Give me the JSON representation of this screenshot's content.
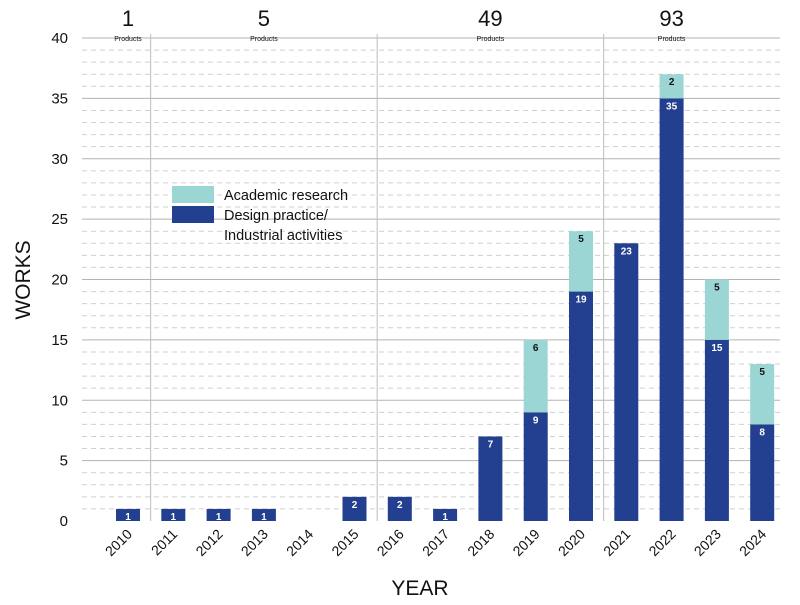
{
  "chart_data": {
    "type": "bar",
    "stacked": true,
    "title": "",
    "xlabel": "YEAR",
    "ylabel": "WORKS",
    "ylim": [
      0,
      40
    ],
    "yticks": [
      0,
      5,
      10,
      15,
      20,
      25,
      30,
      35,
      40
    ],
    "categories": [
      "2010",
      "2011",
      "2012",
      "2013",
      "2014",
      "2015",
      "2016",
      "2017",
      "2018",
      "2019",
      "2020",
      "2021",
      "2022",
      "2023",
      "2024"
    ],
    "series": [
      {
        "name": "Design practice/ Industrial activities",
        "legend_lines": [
          "Design practice/",
          "Industrial activities"
        ],
        "color": "#233f8f",
        "values": [
          1,
          1,
          1,
          1,
          0,
          2,
          2,
          1,
          7,
          9,
          19,
          23,
          35,
          15,
          8
        ]
      },
      {
        "name": "Academic research",
        "legend_lines": [
          "Academic research"
        ],
        "color": "#9bd5d4",
        "values": [
          0,
          0,
          0,
          0,
          0,
          0,
          0,
          0,
          0,
          6,
          5,
          0,
          2,
          5,
          5
        ]
      }
    ],
    "grid": true,
    "legend_position": "upper-left",
    "period_groups": [
      {
        "count": "1",
        "unit": "Products"
      },
      {
        "count": "5",
        "unit": "Products"
      },
      {
        "count": "49",
        "unit": "Products"
      },
      {
        "count": "93",
        "unit": "Products"
      }
    ]
  }
}
